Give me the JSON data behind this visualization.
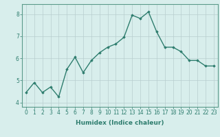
{
  "x": [
    0,
    1,
    2,
    3,
    4,
    5,
    6,
    7,
    8,
    9,
    10,
    11,
    12,
    13,
    14,
    15,
    16,
    17,
    18,
    19,
    20,
    21,
    22,
    23
  ],
  "y": [
    4.45,
    4.9,
    4.45,
    4.7,
    4.25,
    5.5,
    6.05,
    5.35,
    5.9,
    6.25,
    6.5,
    6.65,
    6.95,
    7.95,
    7.8,
    8.1,
    7.2,
    6.5,
    6.5,
    6.3,
    5.9,
    5.9,
    5.65,
    5.65
  ],
  "xlabel": "Humidex (Indice chaleur)",
  "xlim": [
    -0.5,
    23.5
  ],
  "ylim": [
    3.8,
    8.45
  ],
  "yticks": [
    4,
    5,
    6,
    7,
    8
  ],
  "xticks": [
    0,
    1,
    2,
    3,
    4,
    5,
    6,
    7,
    8,
    9,
    10,
    11,
    12,
    13,
    14,
    15,
    16,
    17,
    18,
    19,
    20,
    21,
    22,
    23
  ],
  "line_color": "#2e7d6e",
  "marker": "D",
  "marker_size": 1.8,
  "line_width": 1.0,
  "bg_color": "#d8eeec",
  "grid_color": "#b8cece",
  "label_fontsize": 6.5,
  "tick_fontsize": 5.5
}
